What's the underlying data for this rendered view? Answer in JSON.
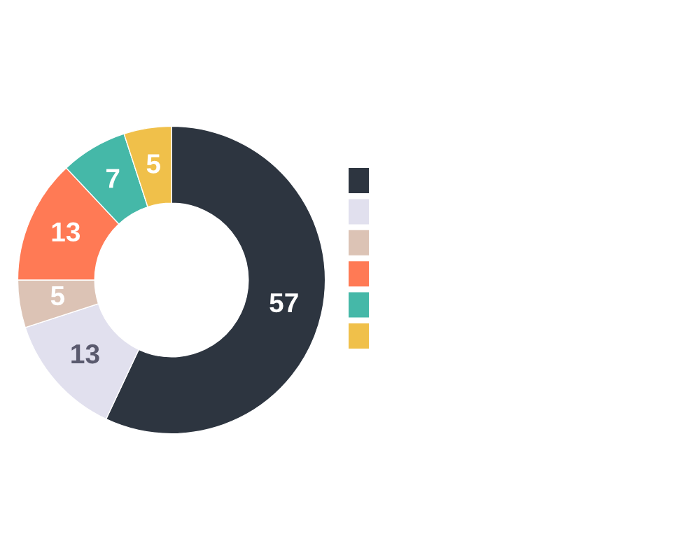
{
  "chart_data": {
    "type": "donut",
    "categories": [
      null,
      null,
      null,
      null,
      null,
      null
    ],
    "values": [
      57,
      13,
      5,
      13,
      7,
      5
    ],
    "colors": [
      "#2d3540",
      "#e1e0ee",
      "#dcc3b5",
      "#ff7a55",
      "#45b8a8",
      "#f0c04a"
    ],
    "data_labels": true
  }
}
